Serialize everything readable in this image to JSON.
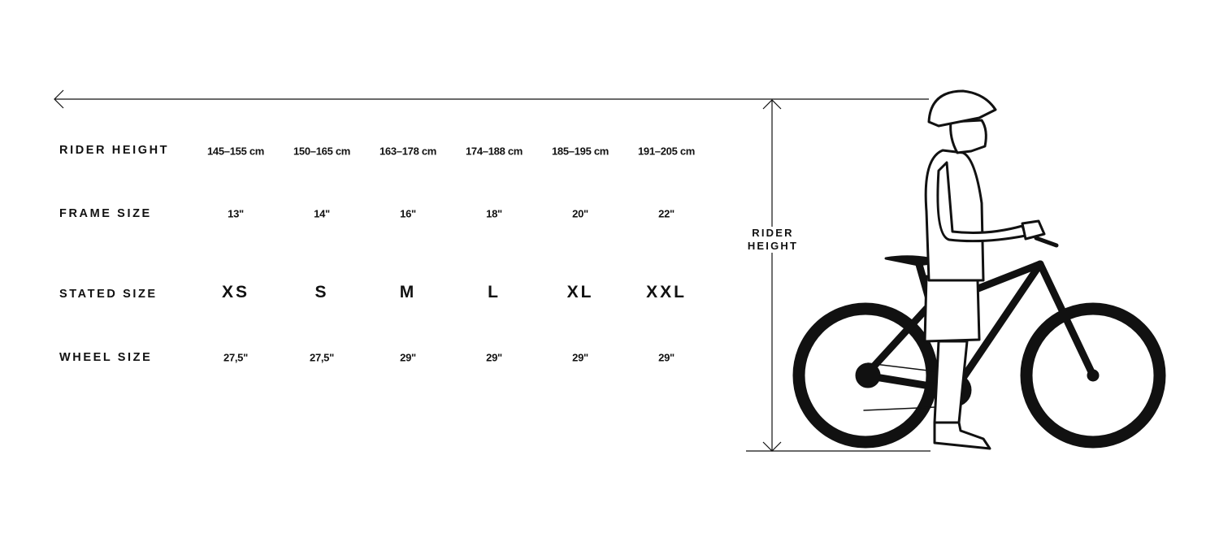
{
  "rows": [
    {
      "label": "RIDER HEIGHT",
      "values": [
        "145–155 cm",
        "150–165 cm",
        "163–178 cm",
        "174–188 cm",
        "185–195 cm",
        "191–205 cm"
      ]
    },
    {
      "label": "FRAME SIZE",
      "values": [
        "13\"",
        "14\"",
        "16\"",
        "18\"",
        "20\"",
        "22\""
      ]
    },
    {
      "label": "STATED SIZE",
      "values": [
        "XS",
        "S",
        "M",
        "L",
        "XL",
        "XXL"
      ]
    },
    {
      "label": "WHEEL SIZE",
      "values": [
        "27,5\"",
        "27,5\"",
        "29\"",
        "29\"",
        "29\"",
        "29\""
      ]
    }
  ],
  "illustration": {
    "rider_height_line1": "RIDER",
    "rider_height_line2": "HEIGHT",
    "icon": "rider-with-bike-illustration"
  },
  "colors": {
    "ink": "#111111",
    "background": "#ffffff"
  }
}
